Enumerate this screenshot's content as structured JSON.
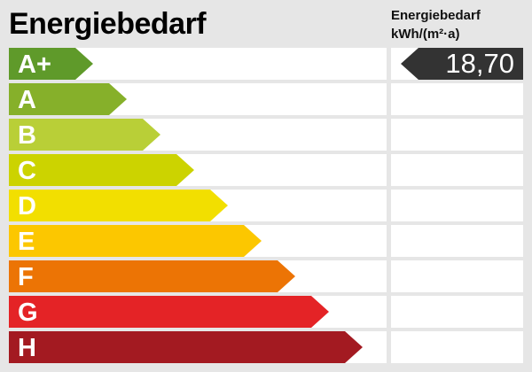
{
  "title": "Energiebedarf",
  "value_header": {
    "line1": "Energiebedarf",
    "line2": "kWh/(m²·a)"
  },
  "chart_data": {
    "type": "bar",
    "title": "Energiebedarf",
    "categories": [
      "A+",
      "A",
      "B",
      "C",
      "D",
      "E",
      "F",
      "G",
      "H"
    ],
    "colors": [
      "#5f9a2a",
      "#86b02a",
      "#b9cf37",
      "#ccd300",
      "#f2df00",
      "#fcc700",
      "#ec7405",
      "#e42326",
      "#a31a21"
    ],
    "value": "18,70",
    "value_class": "A+",
    "unit": "kWh/(m²·a)",
    "value_marker_color": "#333333"
  }
}
